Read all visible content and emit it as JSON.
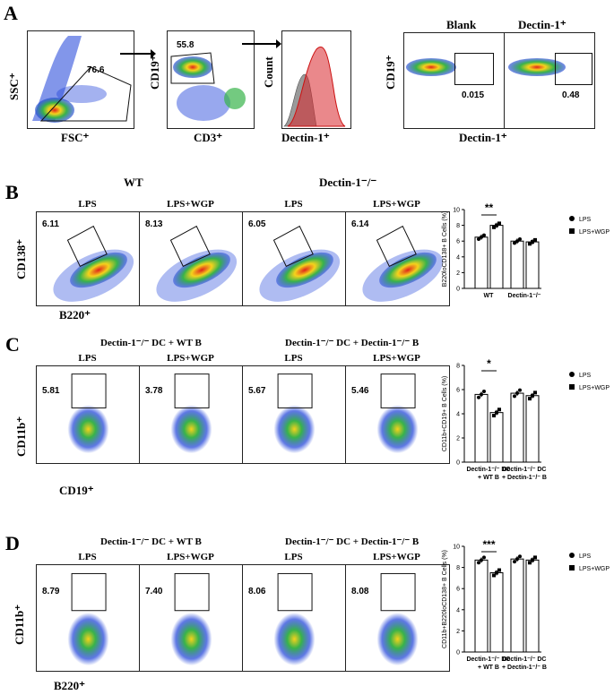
{
  "panels": {
    "a": "A",
    "b": "B",
    "c": "C",
    "d": "D"
  },
  "colors": {
    "density_hot": "#e0241b",
    "density_mid": "#f5d21c",
    "density_low": "#38b34a",
    "density_cool": "#1b3fd9",
    "hist_red": "#d8262c",
    "hist_grey": "#9a9a9a"
  },
  "panelA": {
    "plot1": {
      "value": "76.6",
      "xlabel": "FSC⁺",
      "ylabel": "SSC⁺"
    },
    "plot2": {
      "value": "55.8",
      "xlabel": "CD3⁺",
      "ylabel": "CD19⁺"
    },
    "plot3": {
      "xlabel": "Dectin-1⁺",
      "ylabel": "Count"
    },
    "plot4": {
      "blank_title": "Blank",
      "dectin_title": "Dectin-1⁺",
      "blank_value": "0.015",
      "dectin_value": "0.48",
      "xlabel": "Dectin-1⁺",
      "ylabel": "CD19⁺"
    }
  },
  "panelB": {
    "wt": "WT",
    "ko": "Dectin-1⁻/⁻",
    "conditions": [
      "LPS",
      "LPS+WGP",
      "LPS",
      "LPS+WGP"
    ],
    "values": [
      "6.11",
      "8.13",
      "6.05",
      "6.14"
    ],
    "xlabel": "B220⁺",
    "ylabel": "CD138⁺"
  },
  "panelC": {
    "group1": "Dectin-1⁻/⁻ DC + WT B",
    "group2": "Dectin-1⁻/⁻ DC + Dectin-1⁻/⁻ B",
    "conditions": [
      "LPS",
      "LPS+WGP",
      "LPS",
      "LPS+WGP"
    ],
    "values": [
      "5.81",
      "3.78",
      "5.67",
      "5.46"
    ],
    "xlabel": "CD19⁺",
    "ylabel": "CD11b⁺"
  },
  "panelD": {
    "group1": "Dectin-1⁻/⁻ DC + WT B",
    "group2": "Dectin-1⁻/⁻ DC + Dectin-1⁻/⁻ B",
    "conditions": [
      "LPS",
      "LPS+WGP",
      "LPS",
      "LPS+WGP"
    ],
    "values": [
      "8.79",
      "7.40",
      "8.06",
      "8.08"
    ],
    "xlabel": "B220⁺",
    "ylabel": "CD11b⁺"
  },
  "chart_data": [
    {
      "type": "bar",
      "id": "B",
      "ylabel": "B220loCD138+ B Cells (%)",
      "ylim": [
        0,
        10
      ],
      "yticks": [
        0,
        2,
        4,
        6,
        8,
        10
      ],
      "categories": [
        "WT",
        "Dectin-1⁻/⁻"
      ],
      "series": [
        {
          "name": "LPS",
          "values": [
            6.5,
            6.0
          ]
        },
        {
          "name": "LPS+WGP",
          "values": [
            8.0,
            5.9
          ]
        }
      ],
      "significance": "**",
      "legend": [
        "LPS",
        "LPS+WGP"
      ]
    },
    {
      "type": "bar",
      "id": "C",
      "ylabel": "CD11b+CD19+ B Cells (%)",
      "ylim": [
        0,
        8
      ],
      "yticks": [
        0,
        2,
        4,
        6,
        8
      ],
      "categories": [
        "Dectin-1⁻/⁻ DC + WT B",
        "Dectin-1⁻/⁻ DC + Dectin-1⁻/⁻ B"
      ],
      "series": [
        {
          "name": "LPS",
          "values": [
            5.6,
            5.7
          ]
        },
        {
          "name": "LPS+WGP",
          "values": [
            4.1,
            5.5
          ]
        }
      ],
      "significance": "*",
      "legend": [
        "LPS",
        "LPS+WGP"
      ]
    },
    {
      "type": "bar",
      "id": "D",
      "ylabel": "CD11b+B220loCD138+ B Cells (%)",
      "ylim": [
        0,
        10
      ],
      "yticks": [
        0,
        2,
        4,
        6,
        8,
        10
      ],
      "categories": [
        "Dectin-1⁻/⁻ DC + WT B",
        "Dectin-1⁻/⁻ DC + Dectin-1⁻/⁻ B"
      ],
      "series": [
        {
          "name": "LPS",
          "values": [
            8.7,
            8.8
          ]
        },
        {
          "name": "LPS+WGP",
          "values": [
            7.5,
            8.7
          ]
        }
      ],
      "significance": "***",
      "legend": [
        "LPS",
        "LPS+WGP"
      ]
    }
  ]
}
